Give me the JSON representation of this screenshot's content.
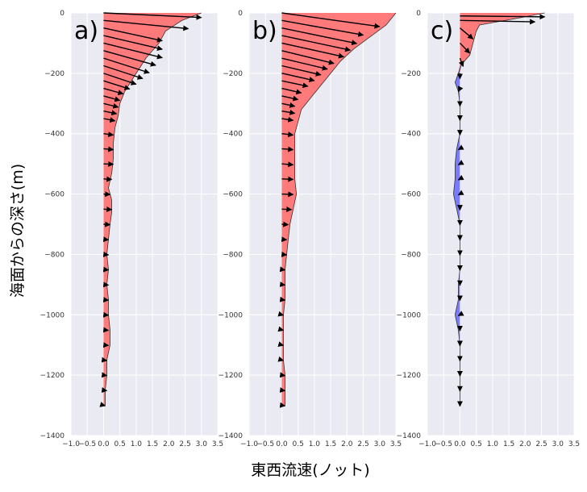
{
  "figure": {
    "ylabel": "海面からの深さ(m)",
    "xlabel": "東西流速(ノット)"
  },
  "colors": {
    "background": "#eaeaf2",
    "grid": "#ffffff",
    "positive_fill": "#ff7b7b",
    "negative_fill": "#7b7bff",
    "line": "#000000"
  },
  "chart_data": [
    {
      "type": "area",
      "panel_label": "a)",
      "xlim": [
        -1.0,
        3.5
      ],
      "ylim": [
        -1400,
        0
      ],
      "xticks": [
        "−1.0",
        "−0.5",
        "0.0",
        "0.5",
        "1.0",
        "1.5",
        "2.0",
        "2.5",
        "3.0",
        "3.5"
      ],
      "yticks": [
        "0",
        "−200",
        "−400",
        "−600",
        "−800",
        "−1000",
        "−1200",
        "−1400"
      ],
      "grid": true,
      "profile": {
        "depth": [
          0,
          -25,
          -60,
          -100,
          -150,
          -200,
          -260,
          -300,
          -340,
          -380,
          -430,
          -480,
          -530,
          -580,
          -620,
          -660,
          -700,
          -750,
          -800,
          -850,
          -900,
          -950,
          -1000,
          -1050,
          -1100,
          -1150,
          -1200,
          -1250,
          -1300
        ],
        "u": [
          3.0,
          2.4,
          1.9,
          1.7,
          1.3,
          1.0,
          0.65,
          0.5,
          0.45,
          0.35,
          0.3,
          0.3,
          0.25,
          0.15,
          0.25,
          0.25,
          0.2,
          0.15,
          0.1,
          0.15,
          0.1,
          0.15,
          0.15,
          0.2,
          0.2,
          0.1,
          0.1,
          0.05,
          0.05
        ]
      },
      "arrows": [
        {
          "depth": 0,
          "u": 3.0,
          "v": 0.5
        },
        {
          "depth": -25,
          "u": 2.6,
          "v": 0.9
        },
        {
          "depth": -50,
          "u": 1.8,
          "v": 1.4
        },
        {
          "depth": -75,
          "u": 1.8,
          "v": 1.5
        },
        {
          "depth": -100,
          "u": 1.8,
          "v": 1.6
        },
        {
          "depth": -125,
          "u": 1.6,
          "v": 1.6
        },
        {
          "depth": -150,
          "u": 1.4,
          "v": 1.6
        },
        {
          "depth": -175,
          "u": 1.2,
          "v": 1.4
        },
        {
          "depth": -200,
          "u": 1.0,
          "v": 1.2
        },
        {
          "depth": -225,
          "u": 0.8,
          "v": 0.9
        },
        {
          "depth": -250,
          "u": 0.6,
          "v": 0.6
        },
        {
          "depth": -275,
          "u": 0.5,
          "v": 0.5
        },
        {
          "depth": -300,
          "u": 0.45,
          "v": 0.4
        },
        {
          "depth": -325,
          "u": 0.4,
          "v": 0.3
        },
        {
          "depth": -350,
          "u": 0.35,
          "v": 0.25
        },
        {
          "depth": -400,
          "u": 0.3,
          "v": 0.15
        },
        {
          "depth": -450,
          "u": 0.3,
          "v": 0.1
        },
        {
          "depth": -500,
          "u": 0.3,
          "v": 0.05
        },
        {
          "depth": -550,
          "u": 0.25,
          "v": 0.05
        },
        {
          "depth": -600,
          "u": 0.2,
          "v": 0.05
        },
        {
          "depth": -650,
          "u": 0.25,
          "v": 0.05
        },
        {
          "depth": -700,
          "u": 0.2,
          "v": 0.05
        },
        {
          "depth": -750,
          "u": 0.15,
          "v": 0.05
        },
        {
          "depth": -800,
          "u": 0.15,
          "v": 0.05
        },
        {
          "depth": -850,
          "u": 0.15,
          "v": 0.05
        },
        {
          "depth": -900,
          "u": 0.15,
          "v": 0.05
        },
        {
          "depth": -950,
          "u": 0.15,
          "v": 0.05
        },
        {
          "depth": -1000,
          "u": 0.15,
          "v": 0.05
        },
        {
          "depth": -1050,
          "u": 0.15,
          "v": 0.05
        },
        {
          "depth": -1100,
          "u": 0.15,
          "v": 0.05
        },
        {
          "depth": -1150,
          "u": 0.1,
          "v": 0.05
        },
        {
          "depth": -1200,
          "u": 0.1,
          "v": 0.05
        },
        {
          "depth": -1250,
          "u": 0.1,
          "v": 0.05
        },
        {
          "depth": -1300,
          "u": 0.05,
          "v": 0.05
        }
      ]
    },
    {
      "type": "area",
      "panel_label": "b)",
      "xlim": [
        -1.0,
        3.5
      ],
      "ylim": [
        -1400,
        0
      ],
      "xticks": [
        "−1.0",
        "−0.5",
        "0.0",
        "0.5",
        "1.0",
        "1.5",
        "2.0",
        "2.5",
        "3.0",
        "3.5"
      ],
      "yticks": [
        "0",
        "−200",
        "−400",
        "−600",
        "−800",
        "−1000",
        "−1200",
        "−1400"
      ],
      "grid": true,
      "profile": {
        "depth": [
          0,
          -40,
          -80,
          -120,
          -160,
          -200,
          -240,
          -280,
          -320,
          -360,
          -400,
          -450,
          -500,
          -550,
          -600,
          -650,
          -700,
          -750,
          -800,
          -850,
          -900,
          -950,
          -1000,
          -1050,
          -1100,
          -1150,
          -1200,
          -1250,
          -1300
        ],
        "u": [
          3.5,
          3.2,
          2.7,
          2.2,
          1.8,
          1.5,
          1.2,
          0.9,
          0.6,
          0.5,
          0.4,
          0.4,
          0.4,
          0.4,
          0.45,
          0.35,
          0.25,
          0.2,
          0.15,
          0.1,
          0.1,
          0.1,
          0.05,
          0.05,
          0.05,
          0.05,
          0.1,
          0.1,
          0.1
        ]
      },
      "arrows": [
        {
          "depth": 0,
          "u": 3.0,
          "v": 1.5
        },
        {
          "depth": -25,
          "u": 2.5,
          "v": 1.6
        },
        {
          "depth": -50,
          "u": 2.3,
          "v": 1.7
        },
        {
          "depth": -75,
          "u": 2.1,
          "v": 1.6
        },
        {
          "depth": -100,
          "u": 1.9,
          "v": 1.5
        },
        {
          "depth": -125,
          "u": 1.6,
          "v": 1.4
        },
        {
          "depth": -150,
          "u": 1.4,
          "v": 1.2
        },
        {
          "depth": -175,
          "u": 1.2,
          "v": 1.0
        },
        {
          "depth": -200,
          "u": 1.0,
          "v": 0.8
        },
        {
          "depth": -225,
          "u": 0.8,
          "v": 0.6
        },
        {
          "depth": -250,
          "u": 0.6,
          "v": 0.5
        },
        {
          "depth": -275,
          "u": 0.5,
          "v": 0.4
        },
        {
          "depth": -300,
          "u": 0.4,
          "v": 0.3
        },
        {
          "depth": -325,
          "u": 0.4,
          "v": 0.25
        },
        {
          "depth": -350,
          "u": 0.35,
          "v": 0.2
        },
        {
          "depth": -400,
          "u": 0.35,
          "v": 0.15
        },
        {
          "depth": -450,
          "u": 0.35,
          "v": 0.1
        },
        {
          "depth": -500,
          "u": 0.35,
          "v": 0.1
        },
        {
          "depth": -550,
          "u": 0.35,
          "v": 0.05
        },
        {
          "depth": -600,
          "u": 0.35,
          "v": 0.05
        },
        {
          "depth": -650,
          "u": 0.3,
          "v": 0.05
        },
        {
          "depth": -700,
          "u": 0.2,
          "v": 0.05
        },
        {
          "depth": -750,
          "u": 0.15,
          "v": 0.05
        },
        {
          "depth": -800,
          "u": 0.15,
          "v": 0.05
        },
        {
          "depth": -850,
          "u": 0.1,
          "v": 0.05
        },
        {
          "depth": -900,
          "u": 0.1,
          "v": 0.05
        },
        {
          "depth": -950,
          "u": 0.1,
          "v": 0.05
        },
        {
          "depth": -1000,
          "u": 0.05,
          "v": 0.05
        },
        {
          "depth": -1050,
          "u": 0.05,
          "v": 0.05
        },
        {
          "depth": -1100,
          "u": 0.05,
          "v": 0.05
        },
        {
          "depth": -1150,
          "u": 0.05,
          "v": 0.05
        },
        {
          "depth": -1200,
          "u": 0.1,
          "v": 0.05
        },
        {
          "depth": -1250,
          "u": 0.1,
          "v": 0.05
        },
        {
          "depth": -1300,
          "u": 0.1,
          "v": 0.05
        }
      ]
    },
    {
      "type": "area",
      "panel_label": "c)",
      "xlim": [
        -1.0,
        3.5
      ],
      "ylim": [
        -1400,
        0
      ],
      "xticks": [
        "−1.0",
        "−0.5",
        "0.0",
        "0.5",
        "1.0",
        "1.5",
        "2.0",
        "2.5",
        "3.0",
        "3.5"
      ],
      "yticks": [
        "0",
        "−200",
        "−400",
        "−600",
        "−800",
        "−1000",
        "−1200",
        "−1400"
      ],
      "grid": true,
      "profile": {
        "depth": [
          0,
          -15,
          -40,
          -60,
          -100,
          -140,
          -170,
          -200,
          -230,
          -260,
          -300,
          -350,
          -400,
          -450,
          -500,
          -550,
          -600,
          -650,
          -700,
          -750,
          -800,
          -850,
          -900,
          -950,
          -1000,
          -1050,
          -1100,
          -1150,
          -1200,
          -1250,
          -1300
        ],
        "u": [
          2.6,
          1.9,
          0.6,
          0.5,
          0.4,
          0.3,
          0.05,
          -0.05,
          -0.15,
          -0.05,
          0.0,
          0.0,
          0.0,
          -0.1,
          -0.15,
          -0.15,
          -0.2,
          -0.1,
          0.0,
          0.0,
          0.0,
          0.0,
          -0.05,
          -0.05,
          -0.15,
          -0.05,
          0.0,
          0.0,
          0.0,
          0.0,
          0.0
        ]
      },
      "arrows": [
        {
          "depth": -10,
          "u": 2.6,
          "v": 0.1
        },
        {
          "depth": -25,
          "u": 2.3,
          "v": 0.15
        },
        {
          "depth": -50,
          "u": 0.4,
          "v": 1.2
        },
        {
          "depth": -100,
          "u": 0.3,
          "v": 1.1
        },
        {
          "depth": -150,
          "u": 0.1,
          "v": 0.9
        },
        {
          "depth": -200,
          "u": 0.0,
          "v": 0.6
        },
        {
          "depth": -250,
          "u": -0.05,
          "v": 0.35
        },
        {
          "depth": -300,
          "u": 0.0,
          "v": 0.3
        },
        {
          "depth": -350,
          "u": 0.0,
          "v": 0.2
        },
        {
          "depth": -400,
          "u": 0.0,
          "v": 0.15
        },
        {
          "depth": -450,
          "u": -0.05,
          "v": 0.1
        },
        {
          "depth": -500,
          "u": -0.05,
          "v": 0.1
        },
        {
          "depth": -550,
          "u": -0.05,
          "v": 0.1
        },
        {
          "depth": -600,
          "u": -0.05,
          "v": 0.1
        },
        {
          "depth": -650,
          "u": 0.0,
          "v": 0.1
        },
        {
          "depth": -700,
          "u": 0.0,
          "v": 0.1
        },
        {
          "depth": -750,
          "u": 0.0,
          "v": 0.1
        },
        {
          "depth": -800,
          "u": 0.0,
          "v": 0.1
        },
        {
          "depth": -850,
          "u": 0.0,
          "v": 0.1
        },
        {
          "depth": -900,
          "u": 0.0,
          "v": 0.1
        },
        {
          "depth": -950,
          "u": 0.0,
          "v": 0.1
        },
        {
          "depth": -1000,
          "u": -0.05,
          "v": 0.1
        },
        {
          "depth": -1050,
          "u": 0.0,
          "v": 0.1
        },
        {
          "depth": -1100,
          "u": 0.0,
          "v": 0.1
        },
        {
          "depth": -1150,
          "u": 0.0,
          "v": 0.1
        },
        {
          "depth": -1200,
          "u": 0.0,
          "v": 0.1
        },
        {
          "depth": -1250,
          "u": 0.0,
          "v": 0.1
        },
        {
          "depth": -1300,
          "u": 0.0,
          "v": 0.1
        }
      ]
    }
  ]
}
